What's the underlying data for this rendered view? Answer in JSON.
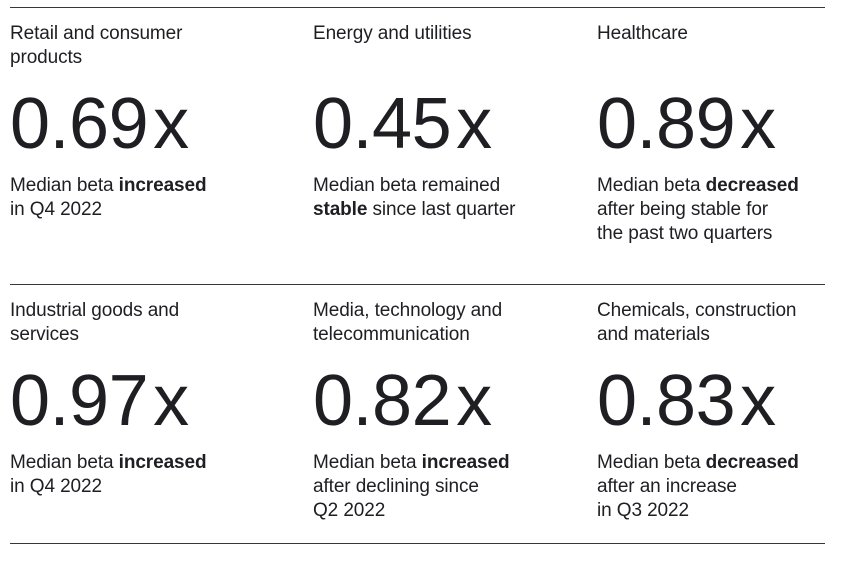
{
  "style": {
    "background": "#ffffff",
    "text_color": "#1e1e23",
    "divider_color": "#36363c"
  },
  "cards": [
    {
      "sector": "Retail and consumer\nproducts",
      "value": "0.69",
      "suffix": "x",
      "desc_before": "Median beta ",
      "desc_bold": "increased",
      "desc_after": "\nin Q4 2022"
    },
    {
      "sector": "Energy and utilities",
      "value": "0.45",
      "suffix": "x",
      "desc_before": "Median beta remained\n",
      "desc_bold": "stable",
      "desc_after": " since last quarter"
    },
    {
      "sector": "Healthcare",
      "value": "0.89",
      "suffix": "x",
      "desc_before": "Median beta ",
      "desc_bold": "decreased",
      "desc_after": "\nafter being stable for\nthe past two quarters"
    },
    {
      "sector": "Industrial goods and\nservices",
      "value": "0.97",
      "suffix": "x",
      "desc_before": "Median beta ",
      "desc_bold": "increased",
      "desc_after": "\nin Q4 2022"
    },
    {
      "sector": "Media, technology and\ntelecommunication",
      "value": "0.82",
      "suffix": "x",
      "desc_before": "Median beta ",
      "desc_bold": "increased",
      "desc_after": "\nafter declining since\nQ2 2022"
    },
    {
      "sector": "Chemicals, construction\nand materials",
      "value": "0.83",
      "suffix": "x",
      "desc_before": "Median beta ",
      "desc_bold": "decreased",
      "desc_after": "\nafter an increase\nin Q3 2022"
    }
  ]
}
